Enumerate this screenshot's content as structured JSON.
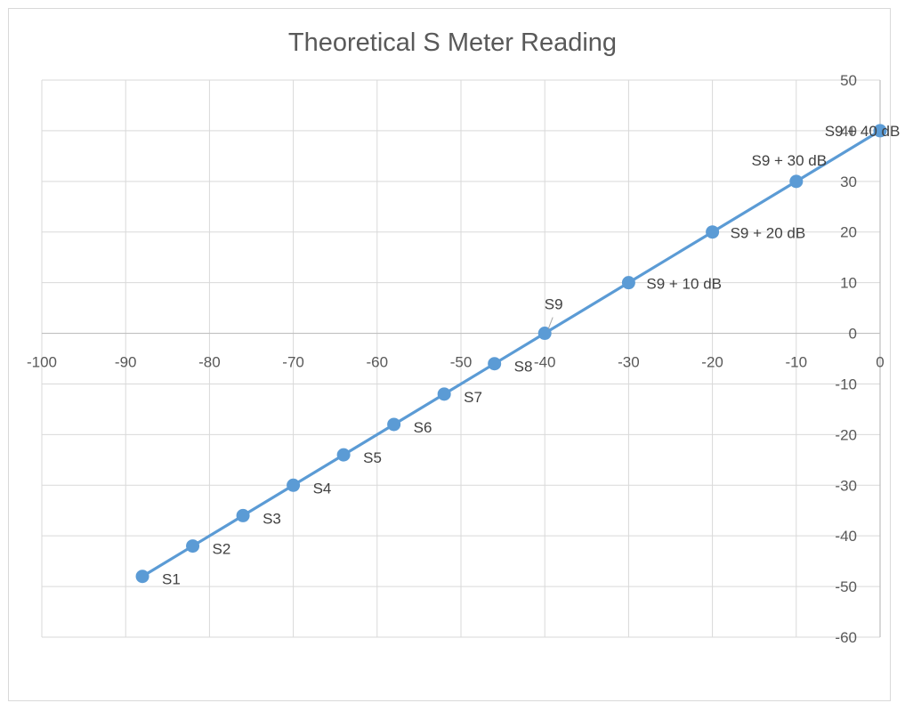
{
  "chart_data": {
    "type": "scatter",
    "title": "Theoretical S Meter Reading",
    "xlim": [
      -100,
      0
    ],
    "ylim": [
      -60,
      50
    ],
    "x_ticks": [
      -100,
      -90,
      -80,
      -70,
      -60,
      -50,
      -40,
      -30,
      -20,
      -10,
      0
    ],
    "y_ticks": [
      -60,
      -50,
      -40,
      -30,
      -20,
      -10,
      0,
      10,
      20,
      30,
      40,
      50
    ],
    "grid": true,
    "legend": "none",
    "series": [
      {
        "color": "#5b9bd5",
        "points": [
          {
            "x": -88,
            "y": -48,
            "label": "S1"
          },
          {
            "x": -82,
            "y": -42,
            "label": "S2"
          },
          {
            "x": -76,
            "y": -36,
            "label": "S3"
          },
          {
            "x": -70,
            "y": -30,
            "label": "S4"
          },
          {
            "x": -64,
            "y": -24,
            "label": "S5"
          },
          {
            "x": -58,
            "y": -18,
            "label": "S6"
          },
          {
            "x": -52,
            "y": -12,
            "label": "S7"
          },
          {
            "x": -46,
            "y": -6,
            "label": "S8"
          },
          {
            "x": -40,
            "y": 0,
            "label": "S9"
          },
          {
            "x": -30,
            "y": 10,
            "label": "S9 + 10 dB"
          },
          {
            "x": -20,
            "y": 20,
            "label": "S9 + 20 dB"
          },
          {
            "x": -10,
            "y": 30,
            "label": "S9 + 30 dB"
          },
          {
            "x": 0,
            "y": 40,
            "label": "S9 + 40 dB"
          }
        ]
      }
    ]
  }
}
